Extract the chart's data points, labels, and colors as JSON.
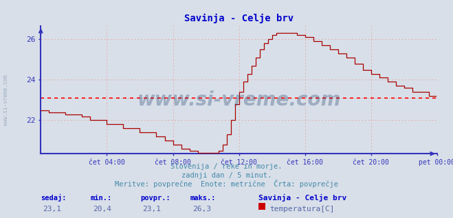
{
  "title": "Savinja - Celje brv",
  "title_color": "#0000cc",
  "bg_color": "#d8dfe8",
  "plot_bg_color": "#d8dfe8",
  "line_color": "#aa0000",
  "avg_line_color": "#ff0000",
  "avg_value": 23.1,
  "x_axis_color": "#3333bb",
  "grid_color": "#e8aaaa",
  "ylim_low": 20.35,
  "ylim_high": 26.65,
  "yticks": [
    22,
    24,
    26
  ],
  "tick_label_color": "#4488bb",
  "watermark": "www.si-vreme.com",
  "watermark_color": "#1a3a6a",
  "watermark_alpha": 0.3,
  "side_watermark": "www.si-vreme.com",
  "subtitle1": "Slovenija / reke in morje.",
  "subtitle2": "zadnji dan / 5 minut.",
  "subtitle3": "Meritve: povprečne  Enote: metrične  Črta: povprečje",
  "subtitle_color": "#4488aa",
  "footer_label_color": "#0000cc",
  "footer_value_color": "#5566aa",
  "legend_title": "Savinja - Celje brv",
  "legend_label": "temperatura[C]",
  "legend_color": "#cc0000",
  "x_tick_labels": [
    "čet 04:00",
    "čet 08:00",
    "čet 12:00",
    "čet 16:00",
    "čet 20:00",
    "pet 00:00"
  ],
  "x_tick_positions": [
    48,
    96,
    144,
    192,
    240,
    288
  ],
  "total_points": 288,
  "sedaj": "23,1",
  "min_str": "20,4",
  "povpr_str": "23,1",
  "maks_str": "26,3"
}
